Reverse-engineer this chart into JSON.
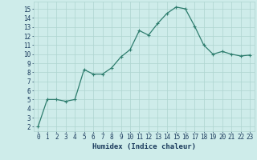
{
  "x": [
    0,
    1,
    2,
    3,
    4,
    5,
    6,
    7,
    8,
    9,
    10,
    11,
    12,
    13,
    14,
    15,
    16,
    17,
    18,
    19,
    20,
    21,
    22,
    23
  ],
  "y": [
    2,
    5,
    5,
    4.8,
    5,
    8.3,
    7.8,
    7.8,
    8.5,
    9.7,
    10.5,
    12.6,
    12.1,
    13.4,
    14.5,
    15.2,
    15.0,
    13.1,
    11.0,
    10.0,
    10.3,
    10.0,
    9.8,
    9.9
  ],
  "line_color": "#2e7d6e",
  "marker": "+",
  "marker_size": 3,
  "linewidth": 0.9,
  "xlabel": "Humidex (Indice chaleur)",
  "xlabel_fontsize": 6.5,
  "xlabel_color": "#1a3a5c",
  "ylim": [
    1.5,
    15.8
  ],
  "xlim": [
    -0.5,
    23.5
  ],
  "yticks": [
    2,
    3,
    4,
    5,
    6,
    7,
    8,
    9,
    10,
    11,
    12,
    13,
    14,
    15
  ],
  "xticks": [
    0,
    1,
    2,
    3,
    4,
    5,
    6,
    7,
    8,
    9,
    10,
    11,
    12,
    13,
    14,
    15,
    16,
    17,
    18,
    19,
    20,
    21,
    22,
    23
  ],
  "bg_color": "#ceecea",
  "grid_color": "#aed4d0",
  "tick_fontsize": 5.5,
  "tick_color": "#1a3a5c"
}
